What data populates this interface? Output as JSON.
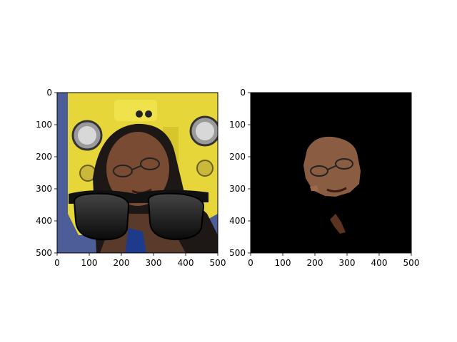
{
  "figure": {
    "background": "#ffffff",
    "axes_color": "#000000"
  },
  "chart_data": [
    {
      "type": "image",
      "title": "",
      "xlabel": "",
      "ylabel": "",
      "xlim": [
        0,
        500
      ],
      "ylim": [
        500,
        0
      ],
      "xticks": [
        0,
        100,
        200,
        300,
        400,
        500
      ],
      "yticks": [
        0,
        100,
        200,
        300,
        400,
        500
      ],
      "content": "photo of a woman with dark hair and glasses in front of a yellow object; large black sunglasses overlaid across the lower face",
      "colors": {
        "yellow": "#e8d93a",
        "blue": "#4a5a9a",
        "hair": "#1c1614",
        "skin": "#7a4a32",
        "lens": "#1a1a1a"
      }
    },
    {
      "type": "image",
      "title": "",
      "xlabel": "",
      "ylabel": "",
      "xlim": [
        0,
        500
      ],
      "ylim": [
        500,
        0
      ],
      "xticks": [
        0,
        100,
        200,
        300,
        400,
        500
      ],
      "yticks": [
        0,
        100,
        200,
        300,
        400,
        500
      ],
      "content": "segmentation mask: black background with only the face region visible",
      "colors": {
        "background": "#000000",
        "skin": "#8a5a40"
      }
    }
  ]
}
